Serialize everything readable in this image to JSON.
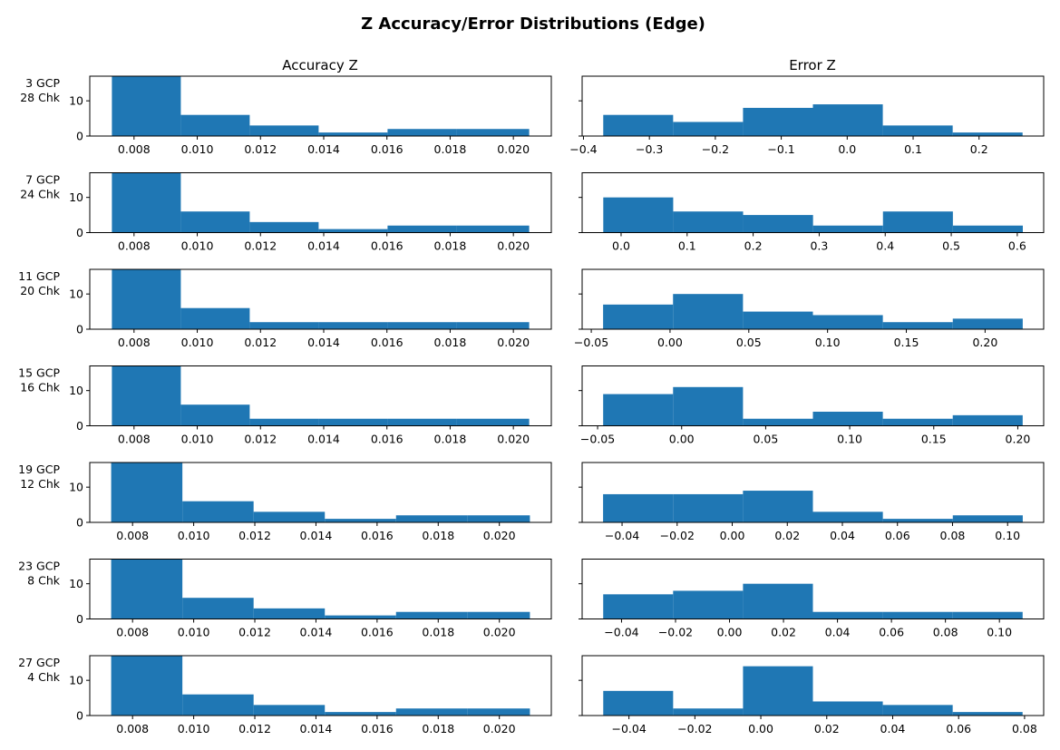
{
  "chart_data": {
    "type": "histogram-grid",
    "title": "Z Accuracy/Error Distributions (Edge)",
    "column_titles": [
      "Accuracy Z",
      "Error Z"
    ],
    "bar_color": "#1f77b4",
    "y_ticks": [
      0,
      10
    ],
    "ylim": [
      0,
      17
    ],
    "rows": [
      {
        "label_lines": [
          "3 GCP",
          "28 Chk"
        ],
        "accuracy": {
          "bin_edges": [
            0.0073,
            0.00948,
            0.01166,
            0.01384,
            0.01602,
            0.0182,
            0.0205
          ],
          "counts": [
            17,
            6,
            3,
            1,
            2,
            2
          ],
          "xlim": [
            0.0066,
            0.0212
          ],
          "x_ticks": [
            0.008,
            0.01,
            0.012,
            0.014,
            0.016,
            0.018,
            0.02
          ],
          "x_tick_labels": [
            "0.008",
            "0.010",
            "0.012",
            "0.014",
            "0.016",
            "0.018",
            "0.020"
          ]
        },
        "error": {
          "bin_edges": [
            -0.37,
            -0.264,
            -0.158,
            -0.052,
            0.054,
            0.16,
            0.266
          ],
          "counts": [
            6,
            4,
            8,
            9,
            3,
            1
          ],
          "xlim": [
            -0.402,
            0.298
          ],
          "x_ticks": [
            -0.4,
            -0.3,
            -0.2,
            -0.1,
            0.0,
            0.1,
            0.2
          ],
          "x_tick_labels": [
            "−0.4",
            "−0.3",
            "−0.2",
            "−0.1",
            "0.0",
            "0.1",
            "0.2"
          ]
        }
      },
      {
        "label_lines": [
          "7 GCP",
          "24 Chk"
        ],
        "accuracy": {
          "bin_edges": [
            0.0073,
            0.00948,
            0.01166,
            0.01384,
            0.01602,
            0.0182,
            0.0205
          ],
          "counts": [
            17,
            6,
            3,
            1,
            2,
            2
          ],
          "xlim": [
            0.0066,
            0.0212
          ],
          "x_ticks": [
            0.008,
            0.01,
            0.012,
            0.014,
            0.016,
            0.018,
            0.02
          ],
          "x_tick_labels": [
            "0.008",
            "0.010",
            "0.012",
            "0.014",
            "0.016",
            "0.018",
            "0.020"
          ]
        },
        "error": {
          "bin_edges": [
            -0.027,
            0.0789,
            0.1848,
            0.2907,
            0.3966,
            0.5025,
            0.6084
          ],
          "counts": [
            10,
            6,
            5,
            2,
            6,
            2
          ],
          "xlim": [
            -0.059,
            0.64
          ],
          "x_ticks": [
            0.0,
            0.1,
            0.2,
            0.3,
            0.4,
            0.5,
            0.6
          ],
          "x_tick_labels": [
            "0.0",
            "0.1",
            "0.2",
            "0.3",
            "0.4",
            "0.5",
            "0.6"
          ]
        }
      },
      {
        "label_lines": [
          "11 GCP",
          "20 Chk"
        ],
        "accuracy": {
          "bin_edges": [
            0.0073,
            0.00948,
            0.01166,
            0.01384,
            0.01602,
            0.0182,
            0.0205
          ],
          "counts": [
            17,
            6,
            2,
            2,
            2,
            2
          ],
          "xlim": [
            0.0066,
            0.0212
          ],
          "x_ticks": [
            0.008,
            0.01,
            0.012,
            0.014,
            0.016,
            0.018,
            0.02
          ],
          "x_tick_labels": [
            "0.008",
            "0.010",
            "0.012",
            "0.014",
            "0.016",
            "0.018",
            "0.020"
          ]
        },
        "error": {
          "bin_edges": [
            -0.0425,
            0.0019,
            0.0463,
            0.0907,
            0.1351,
            0.1795,
            0.2239
          ],
          "counts": [
            7,
            10,
            5,
            4,
            2,
            3
          ],
          "xlim": [
            -0.0558,
            0.2372
          ],
          "x_ticks": [
            -0.05,
            0.0,
            0.05,
            0.1,
            0.15,
            0.2
          ],
          "x_tick_labels": [
            "−0.05",
            "0.00",
            "0.05",
            "0.10",
            "0.15",
            "0.20"
          ]
        }
      },
      {
        "label_lines": [
          "15 GCP",
          "16 Chk"
        ],
        "accuracy": {
          "bin_edges": [
            0.0073,
            0.00948,
            0.01166,
            0.01384,
            0.01602,
            0.0182,
            0.0205
          ],
          "counts": [
            17,
            6,
            2,
            2,
            2,
            2
          ],
          "xlim": [
            0.0066,
            0.0212
          ],
          "x_ticks": [
            0.008,
            0.01,
            0.012,
            0.014,
            0.016,
            0.018,
            0.02
          ],
          "x_tick_labels": [
            "0.008",
            "0.010",
            "0.012",
            "0.014",
            "0.016",
            "0.018",
            "0.020"
          ]
        },
        "error": {
          "bin_edges": [
            -0.0467,
            -0.0051,
            0.0365,
            0.0781,
            0.1197,
            0.1613,
            0.2029
          ],
          "counts": [
            9,
            11,
            2,
            4,
            2,
            3
          ],
          "xlim": [
            -0.0592,
            0.2154
          ],
          "x_ticks": [
            -0.05,
            0.0,
            0.05,
            0.1,
            0.15,
            0.2
          ],
          "x_tick_labels": [
            "−0.05",
            "0.00",
            "0.05",
            "0.10",
            "0.15",
            "0.20"
          ]
        }
      },
      {
        "label_lines": [
          "19 GCP",
          "12 Chk"
        ],
        "accuracy": {
          "bin_edges": [
            0.0073,
            0.00963,
            0.01196,
            0.01429,
            0.01662,
            0.01895,
            0.021
          ],
          "counts": [
            17,
            6,
            3,
            1,
            2,
            2
          ],
          "xlim": [
            0.0066,
            0.0217
          ],
          "x_ticks": [
            0.008,
            0.01,
            0.012,
            0.014,
            0.016,
            0.018,
            0.02
          ],
          "x_tick_labels": [
            "0.008",
            "0.010",
            "0.012",
            "0.014",
            "0.016",
            "0.018",
            "0.020"
          ]
        },
        "error": {
          "bin_edges": [
            -0.0469,
            -0.0215,
            0.0039,
            0.0293,
            0.0547,
            0.0801,
            0.1055
          ],
          "counts": [
            8,
            8,
            9,
            3,
            1,
            2
          ],
          "xlim": [
            -0.0545,
            0.1131
          ],
          "x_ticks": [
            -0.04,
            -0.02,
            0.0,
            0.02,
            0.04,
            0.06,
            0.08,
            0.1
          ],
          "x_tick_labels": [
            "−0.04",
            "−0.02",
            "0.00",
            "0.02",
            "0.04",
            "0.06",
            "0.08",
            "0.10"
          ]
        }
      },
      {
        "label_lines": [
          "23 GCP",
          "8 Chk"
        ],
        "accuracy": {
          "bin_edges": [
            0.0073,
            0.00963,
            0.01196,
            0.01429,
            0.01662,
            0.01895,
            0.021
          ],
          "counts": [
            17,
            6,
            3,
            1,
            2,
            2
          ],
          "xlim": [
            0.0066,
            0.0217
          ],
          "x_ticks": [
            0.008,
            0.01,
            0.012,
            0.014,
            0.016,
            0.018,
            0.02
          ],
          "x_tick_labels": [
            "0.008",
            "0.010",
            "0.012",
            "0.014",
            "0.016",
            "0.018",
            "0.020"
          ]
        },
        "error": {
          "bin_edges": [
            -0.0468,
            -0.0209,
            0.005,
            0.0309,
            0.0568,
            0.0827,
            0.1086
          ],
          "counts": [
            7,
            8,
            10,
            2,
            2,
            2
          ],
          "xlim": [
            -0.0546,
            0.1164
          ],
          "x_ticks": [
            -0.04,
            -0.02,
            0.0,
            0.02,
            0.04,
            0.06,
            0.08,
            0.1
          ],
          "x_tick_labels": [
            "−0.04",
            "−0.02",
            "0.00",
            "0.02",
            "0.04",
            "0.06",
            "0.08",
            "0.10"
          ]
        }
      },
      {
        "label_lines": [
          "27 GCP",
          "4 Chk"
        ],
        "accuracy": {
          "bin_edges": [
            0.0073,
            0.00963,
            0.01196,
            0.01429,
            0.01662,
            0.01895,
            0.021
          ],
          "counts": [
            17,
            6,
            3,
            1,
            2,
            2
          ],
          "xlim": [
            0.0066,
            0.0217
          ],
          "x_ticks": [
            0.008,
            0.01,
            0.012,
            0.014,
            0.016,
            0.018,
            0.02
          ],
          "x_tick_labels": [
            "0.008",
            "0.010",
            "0.012",
            "0.014",
            "0.016",
            "0.018",
            "0.020"
          ]
        },
        "error": {
          "bin_edges": [
            -0.0478,
            -0.0266,
            -0.0054,
            0.0158,
            0.037,
            0.0582,
            0.0794
          ],
          "counts": [
            7,
            2,
            14,
            4,
            3,
            1
          ],
          "xlim": [
            -0.0542,
            0.0858
          ],
          "x_ticks": [
            -0.04,
            -0.02,
            0.0,
            0.02,
            0.04,
            0.06,
            0.08
          ],
          "x_tick_labels": [
            "−0.04",
            "−0.02",
            "0.00",
            "0.02",
            "0.04",
            "0.06",
            "0.08"
          ]
        }
      }
    ]
  }
}
